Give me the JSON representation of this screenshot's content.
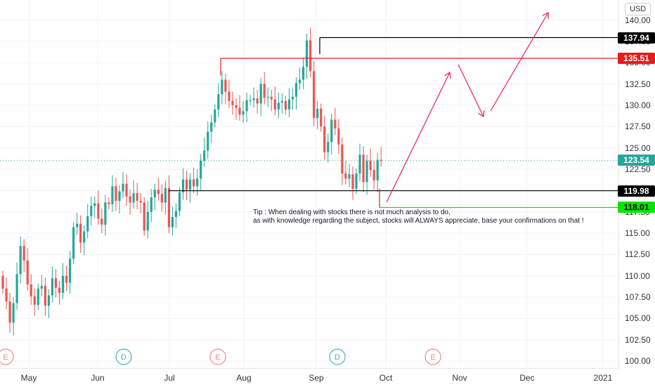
{
  "currency": "USD",
  "tip": {
    "line1": "Tip : When dealing with stocks there is not much analysis to do,",
    "line2": "as with knowledge regarding the subject, stocks will ALWAYS appreciate, base your confirmations on that !"
  },
  "colors": {
    "up": "#26a69a",
    "down": "#ef5350",
    "arrow": "#e91e63",
    "support_green": "#00e600",
    "resistance_red": "#e31c1c"
  },
  "chart_data": {
    "type": "candlestick",
    "title": "",
    "x_labels": [
      "May",
      "Jun",
      "Jul",
      "Aug",
      "Sep",
      "Oct",
      "Nov",
      "Dec",
      "2021"
    ],
    "y_ticks": [
      "140.00",
      "137.50",
      "135.00",
      "132.50",
      "130.00",
      "127.50",
      "125.00",
      "122.50",
      "120.00",
      "117.50",
      "115.00",
      "112.50",
      "110.00",
      "107.50",
      "105.00",
      "102.50",
      "100.00"
    ],
    "ylim": [
      99.5,
      141.5
    ],
    "current_price": 123.54,
    "levels": [
      {
        "label": "137.94",
        "value": 137.94,
        "color": "#000000"
      },
      {
        "label": "135.51",
        "value": 135.51,
        "color": "#e31c1c"
      },
      {
        "label": "119.98",
        "value": 119.98,
        "color": "#000000"
      },
      {
        "label": "118.01",
        "value": 118.01,
        "color": "#00e600"
      }
    ],
    "current_label": "123.54",
    "events": [
      "E",
      "D",
      "E",
      "D",
      "E"
    ],
    "closes": [
      108.5,
      107.0,
      104.5,
      106.8,
      110.2,
      113.5,
      111.8,
      109.0,
      107.6,
      106.6,
      108.5,
      108.8,
      106.5,
      107.7,
      109.7,
      108.6,
      108.0,
      110.0,
      109.2,
      112.0,
      115.7,
      116.1,
      113.9,
      115.2,
      117.0,
      118.2,
      118.5,
      116.7,
      116.0,
      118.6,
      118.4,
      120.5,
      118.8,
      119.9,
      120.8,
      119.3,
      118.6,
      119.7,
      118.8,
      118.6,
      115.3,
      117.5,
      119.2,
      120.1,
      119.6,
      118.6,
      120.3,
      115.7,
      116.9,
      117.6,
      119.8,
      121.3,
      120.1,
      121.3,
      120.5,
      121.4,
      123.5,
      124.7,
      126.9,
      128.0,
      129.5,
      131.3,
      133.0,
      131.6,
      130.5,
      130.0,
      129.7,
      128.9,
      129.3,
      130.6,
      130.6,
      130.8,
      130.2,
      132.5,
      130.9,
      131.0,
      130.7,
      129.5,
      130.3,
      130.5,
      129.5,
      130.7,
      131.0,
      132.6,
      133.0,
      134.5,
      137.6,
      134.0,
      128.5,
      129.6,
      127.5,
      124.5,
      125.7,
      128.3,
      127.3,
      125.4,
      122.0,
      121.4,
      121.9,
      120.2,
      122.0,
      124.2,
      121.0,
      123.5,
      122.4,
      121.2,
      123.6,
      123.5
    ]
  }
}
